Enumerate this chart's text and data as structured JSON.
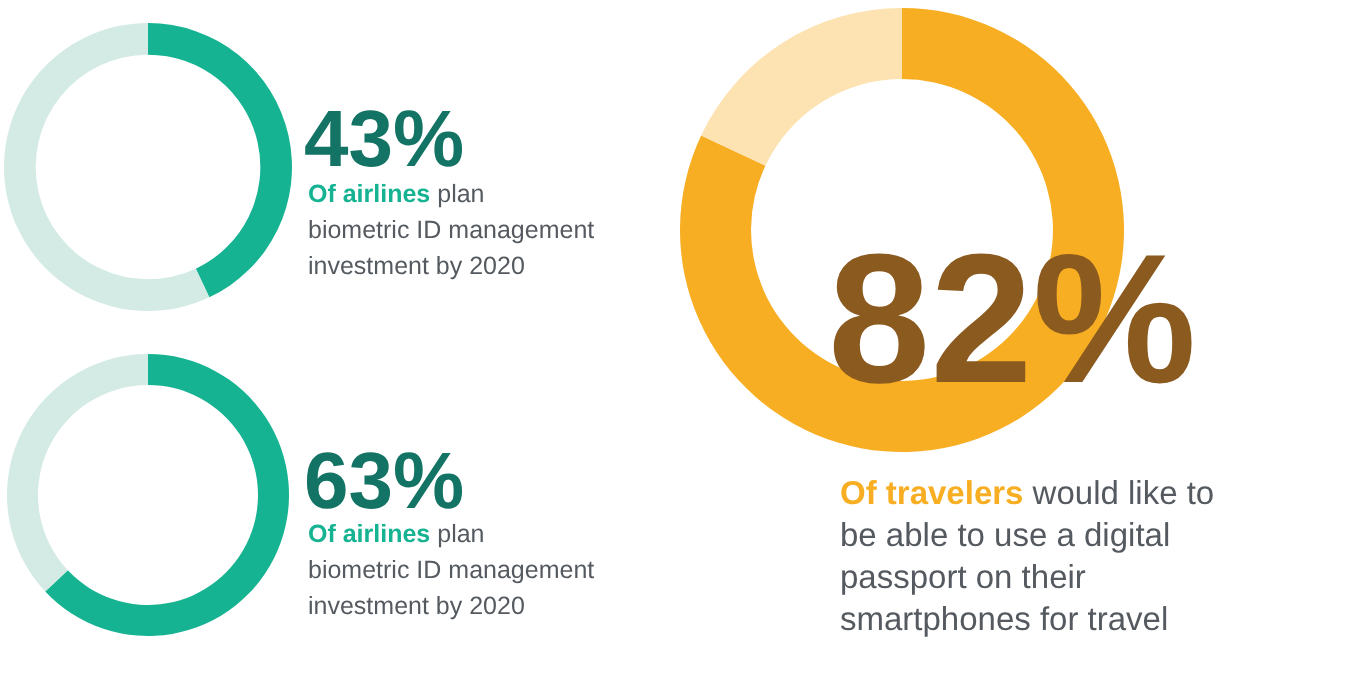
{
  "chart_data": [
    {
      "type": "donut",
      "categories": [
        null,
        null
      ],
      "values": [
        43,
        57
      ],
      "colors": [
        "#16b393",
        "#d3ebe4"
      ],
      "value_labels": [
        "43%",
        null
      ],
      "subtitle": "Of airlines plan biometric ID management investment by 2020"
    },
    {
      "type": "donut",
      "categories": [
        null,
        null
      ],
      "values": [
        63,
        37
      ],
      "colors": [
        "#16b393",
        "#d3ebe4"
      ],
      "value_labels": [
        "63%",
        null
      ],
      "subtitle": "Of airlines plan biometric ID management investment by 2020"
    },
    {
      "type": "donut",
      "categories": [
        null,
        null
      ],
      "values": [
        82,
        18
      ],
      "colors": [
        "#f7ae22",
        "#fde2b2"
      ],
      "value_labels": [
        "82%",
        null
      ],
      "subtitle": "Of travelers would like to be able to use a digital passport on their smartphones for travel"
    }
  ]
}
